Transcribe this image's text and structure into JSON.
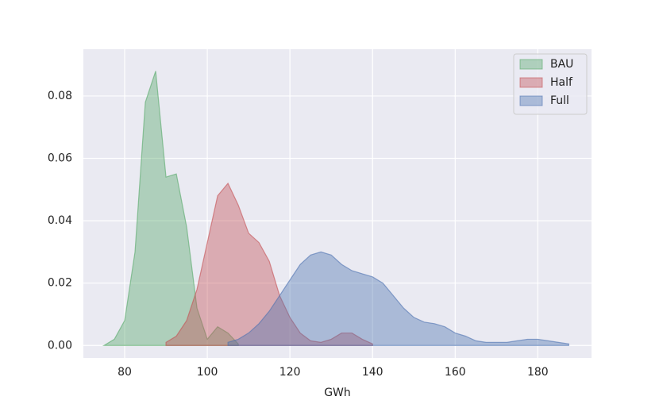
{
  "chart_data": {
    "type": "area",
    "x_label": "GWh",
    "x": [
      75,
      77.5,
      80,
      82.5,
      85,
      87.5,
      90,
      92.5,
      95,
      97.5,
      100,
      102.5,
      105,
      107.5,
      110,
      112.5,
      115,
      117.5,
      120,
      122.5,
      125,
      127.5,
      130,
      132.5,
      135,
      137.5,
      140,
      142.5,
      145,
      147.5,
      150,
      152.5,
      155,
      157.5,
      160,
      162.5,
      165,
      167.5,
      170,
      172.5,
      175,
      177.5,
      180,
      182.5,
      185,
      187.5
    ],
    "series": [
      {
        "name": "BAU",
        "color": "#55a868",
        "values": [
          0,
          0.002,
          0.008,
          0.03,
          0.078,
          0.088,
          0.054,
          0.055,
          0.038,
          0.012,
          0.002,
          0.006,
          0.004,
          0.0005,
          null,
          null,
          null,
          null,
          null,
          null,
          null,
          null,
          null,
          null,
          null,
          null,
          null,
          null,
          null,
          null,
          null,
          null,
          null,
          null,
          null,
          null,
          null,
          null,
          null,
          null,
          null,
          null,
          null,
          null,
          null,
          null
        ]
      },
      {
        "name": "Half",
        "color": "#c44e52",
        "values": [
          null,
          null,
          null,
          null,
          null,
          null,
          0.001,
          0.003,
          0.008,
          0.018,
          0.033,
          0.048,
          0.052,
          0.045,
          0.036,
          0.033,
          0.027,
          0.016,
          0.009,
          0.004,
          0.0015,
          0.001,
          0.002,
          0.004,
          0.004,
          0.002,
          0.0005,
          null,
          null,
          null,
          null,
          null,
          null,
          null,
          null,
          null,
          null,
          null,
          null,
          null,
          null,
          null,
          null,
          null,
          null,
          null
        ]
      },
      {
        "name": "Full",
        "color": "#4c72b0",
        "values": [
          null,
          null,
          null,
          null,
          null,
          null,
          null,
          null,
          null,
          null,
          null,
          null,
          0.001,
          0.002,
          0.004,
          0.007,
          0.011,
          0.016,
          0.021,
          0.026,
          0.029,
          0.03,
          0.029,
          0.026,
          0.024,
          0.023,
          0.022,
          0.02,
          0.016,
          0.012,
          0.009,
          0.0075,
          0.007,
          0.006,
          0.004,
          0.003,
          0.0015,
          0.001,
          0.001,
          0.001,
          0.0015,
          0.002,
          0.002,
          0.0015,
          0.001,
          0.0005
        ]
      }
    ],
    "xlim": [
      70,
      193
    ],
    "xticks": [
      80,
      100,
      120,
      140,
      160,
      180
    ],
    "ylim": [
      -0.004,
      0.095
    ],
    "yticks": [
      {
        "value": 0,
        "label": "0.00"
      },
      {
        "value": 0.02,
        "label": "0.02"
      },
      {
        "value": 0.04,
        "label": "0.04"
      },
      {
        "value": 0.06,
        "label": "0.06"
      },
      {
        "value": 0.08,
        "label": "0.08"
      }
    ],
    "grid": true,
    "legend": "upper right"
  }
}
